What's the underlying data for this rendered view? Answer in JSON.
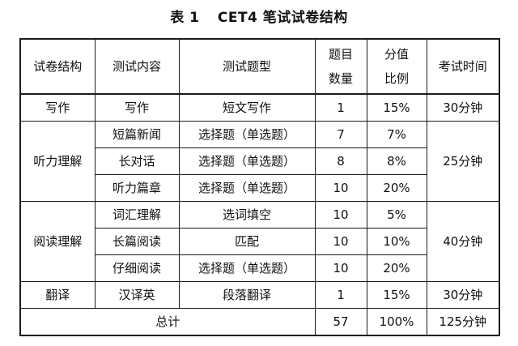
{
  "caption": {
    "number": "表 1",
    "title": "CET4 笔试试卷结构"
  },
  "table": {
    "headers": {
      "structure": "试卷结构",
      "content": "测试内容",
      "type": "测试题型",
      "count_line1": "题目",
      "count_line2": "数量",
      "ratio_line1": "分值",
      "ratio_line2": "比例",
      "time": "考试时间"
    },
    "sections": [
      {
        "structure": "写作",
        "time": "30分钟",
        "rows": [
          {
            "content": "写作",
            "type": "短文写作",
            "count": "1",
            "ratio": "15%"
          }
        ]
      },
      {
        "structure": "听力理解",
        "time": "25分钟",
        "rows": [
          {
            "content": "短篇新闻",
            "type": "选择题（单选题）",
            "count": "7",
            "ratio": "7%"
          },
          {
            "content": "长对话",
            "type": "选择题（单选题）",
            "count": "8",
            "ratio": "8%"
          },
          {
            "content": "听力篇章",
            "type": "选择题（单选题）",
            "count": "10",
            "ratio": "20%"
          }
        ]
      },
      {
        "structure": "阅读理解",
        "time": "40分钟",
        "rows": [
          {
            "content": "词汇理解",
            "type": "选词填空",
            "count": "10",
            "ratio": "5%"
          },
          {
            "content": "长篇阅读",
            "type": "匹配",
            "count": "10",
            "ratio": "10%"
          },
          {
            "content": "仔细阅读",
            "type": "选择题（单选题）",
            "count": "10",
            "ratio": "20%"
          }
        ]
      },
      {
        "structure": "翻译",
        "time": "30分钟",
        "rows": [
          {
            "content": "汉译英",
            "type": "段落翻译",
            "count": "1",
            "ratio": "15%"
          }
        ]
      }
    ],
    "total": {
      "label": "总计",
      "count": "57",
      "ratio": "100%",
      "time": "125分钟"
    }
  }
}
